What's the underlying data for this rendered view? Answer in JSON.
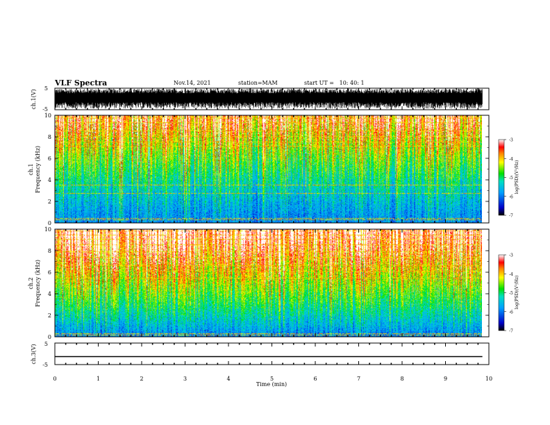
{
  "header": {
    "title": "VLF Spectra",
    "date": "Nov.14, 2021",
    "station": "station=MAM",
    "start_ut": "start UT =   10: 40: 1"
  },
  "chart_data": [
    {
      "type": "line",
      "panel": "ch1-waveform",
      "ylabel": "ch.1(V)",
      "ylim": [
        -5,
        5
      ],
      "yticks": [
        "5",
        "-5"
      ],
      "xlim": [
        0,
        10
      ],
      "x_extent": [
        0,
        9.85
      ],
      "amplitude_range": [
        -5,
        5
      ]
    },
    {
      "type": "heatmap",
      "panel": "ch1-spectrogram",
      "ylabel_channel": "ch.1",
      "ylabel": "Frequency (kHz)",
      "ylim": [
        0,
        10
      ],
      "yticks": [
        "0",
        "2",
        "4",
        "6",
        "8",
        "10"
      ],
      "xlim": [
        0,
        10
      ],
      "x_extent": [
        0,
        9.85
      ],
      "colorbar": {
        "label": "log(PSD)(V²/Hz)",
        "range": [
          -7,
          -3
        ],
        "ticks": [
          "-3",
          "-4",
          "-5",
          "-6",
          "-7"
        ]
      }
    },
    {
      "type": "heatmap",
      "panel": "ch2-spectrogram",
      "ylabel_channel": "ch.2",
      "ylabel": "Frequency (kHz)",
      "ylim": [
        0,
        10
      ],
      "yticks": [
        "0",
        "2",
        "4",
        "6",
        "8",
        "10"
      ],
      "xlim": [
        0,
        10
      ],
      "x_extent": [
        0,
        9.85
      ],
      "colorbar": {
        "label": "log(PSD)(V²/Hz)",
        "range": [
          -7,
          -3
        ],
        "ticks": [
          "-3",
          "-4",
          "-5",
          "-6",
          "-7"
        ]
      }
    },
    {
      "type": "line",
      "panel": "ch3-waveform",
      "ylabel": "ch.3(V)",
      "ylim": [
        -5,
        5
      ],
      "yticks": [
        "5",
        "-5"
      ],
      "xlim": [
        0,
        10
      ],
      "x": [
        0,
        9.85
      ],
      "y": [
        -1.3,
        -1.3
      ]
    }
  ],
  "xaxis": {
    "label": "Time (min)",
    "ticks": [
      "0",
      "1",
      "2",
      "3",
      "4",
      "5",
      "6",
      "7",
      "8",
      "9",
      "10"
    ]
  },
  "colors": {
    "line": "#000000",
    "background": "#ffffff"
  }
}
